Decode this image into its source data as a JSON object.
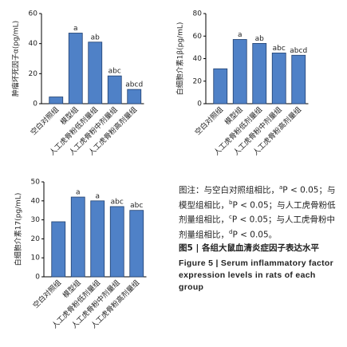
{
  "chart_data": [
    {
      "type": "bar",
      "ylabel": "肿瘤坏死因子α(pg/mL)",
      "color": "#4f81c7",
      "categories": [
        "空白对照组",
        "模型组",
        "人工虎骨粉低剂量组",
        "人工虎骨粉中剂量组",
        "人工虎骨粉高剂量组"
      ],
      "values": [
        4.5,
        47,
        41,
        18.5,
        9.5
      ],
      "annotations": [
        null,
        "a",
        "ab",
        "abc",
        "abcd"
      ],
      "ylim": [
        0,
        60
      ],
      "yticks": [
        0,
        20,
        40,
        60
      ]
    },
    {
      "type": "bar",
      "ylabel": "白细胞介素1β(pg/mL)",
      "color": "#4f81c7",
      "categories": [
        "空白对照组",
        "模型组",
        "人工虎骨粉低剂量组",
        "人工虎骨粉中剂量组",
        "人工虎骨粉高剂量组"
      ],
      "values": [
        31,
        57,
        53.5,
        45,
        43
      ],
      "annotations": [
        null,
        "a",
        "ab",
        "abc",
        "abcd"
      ],
      "ylim": [
        0,
        80
      ],
      "yticks": [
        0,
        20,
        40,
        60,
        80
      ]
    },
    {
      "type": "bar",
      "ylabel": "白细胞介素17(pg/mL)",
      "color": "#4f81c7",
      "categories": [
        "空白对照组",
        "模型组",
        "人工虎骨粉低剂量组",
        "人工虎骨粉中剂量组",
        "人工虎骨粉高剂量组"
      ],
      "values": [
        29,
        42,
        40,
        37,
        35
      ],
      "annotations": [
        null,
        "a",
        "a",
        "abc",
        "abc"
      ],
      "ylim": [
        0,
        50
      ],
      "yticks": [
        0,
        10,
        20,
        30,
        40,
        50
      ]
    }
  ],
  "caption": {
    "note": [
      {
        "text": "图注：与空白对照组相比，"
      },
      {
        "text": "a",
        "sup": true
      },
      {
        "text": "P < 0.05；与模型组相比，"
      },
      {
        "text": "b",
        "sup": true
      },
      {
        "text": "P < 0.05；与人工虎骨粉低剂量组相比，"
      },
      {
        "text": "c",
        "sup": true
      },
      {
        "text": "P < 0.05；与人工虎骨粉中剂量组相比，"
      },
      {
        "text": "d",
        "sup": true
      },
      {
        "text": "P < 0.05。"
      }
    ],
    "title_cn": "图5 | 各组大鼠血清炎症因子表达水平",
    "title_en": "Figure 5  |  Serum inflammatory factor expression levels in rats of each group"
  }
}
